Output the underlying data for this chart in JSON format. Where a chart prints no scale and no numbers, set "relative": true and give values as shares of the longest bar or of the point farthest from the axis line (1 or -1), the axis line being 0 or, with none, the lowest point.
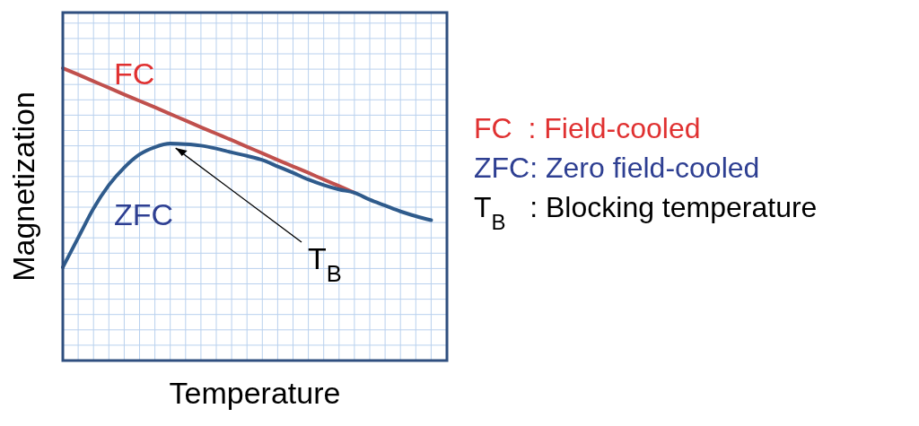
{
  "chart_data": {
    "type": "line",
    "relative": true,
    "xlabel": "Temperature",
    "ylabel": "Magnetization",
    "grid": true,
    "marker": "none",
    "line_style": "solid",
    "categories": [
      null,
      null,
      null,
      null,
      null,
      null,
      null,
      null,
      null,
      null,
      null,
      null,
      null,
      null,
      null,
      null,
      null,
      null,
      null,
      null,
      null,
      null,
      null,
      null,
      null
    ],
    "series": [
      {
        "name": "FC",
        "color": "#c0504d",
        "values": [
          1.0,
          0.978,
          0.955,
          0.933,
          0.91,
          0.888,
          0.866,
          0.843,
          0.821,
          0.798,
          0.776,
          0.754,
          0.731,
          0.709,
          0.686,
          0.664,
          0.642,
          0.619,
          0.597,
          0.574,
          null,
          null,
          null,
          null,
          null
        ]
      },
      {
        "name": "ZFC",
        "color": "#2f5b8c",
        "values": [
          0.319,
          0.42,
          0.52,
          0.6,
          0.66,
          0.705,
          0.73,
          0.742,
          0.74,
          0.735,
          0.725,
          0.712,
          0.7,
          0.686,
          0.664,
          0.642,
          0.619,
          0.6,
          0.585,
          0.574,
          0.55,
          0.53,
          0.51,
          0.494,
          0.48
        ]
      }
    ],
    "annotations": [
      "T$_{B}$",
      "FC  : Field-cooled",
      "ZFC: Zero field-cooled",
      "T$_{B}$   : Blocking temperature"
    ]
  }
}
